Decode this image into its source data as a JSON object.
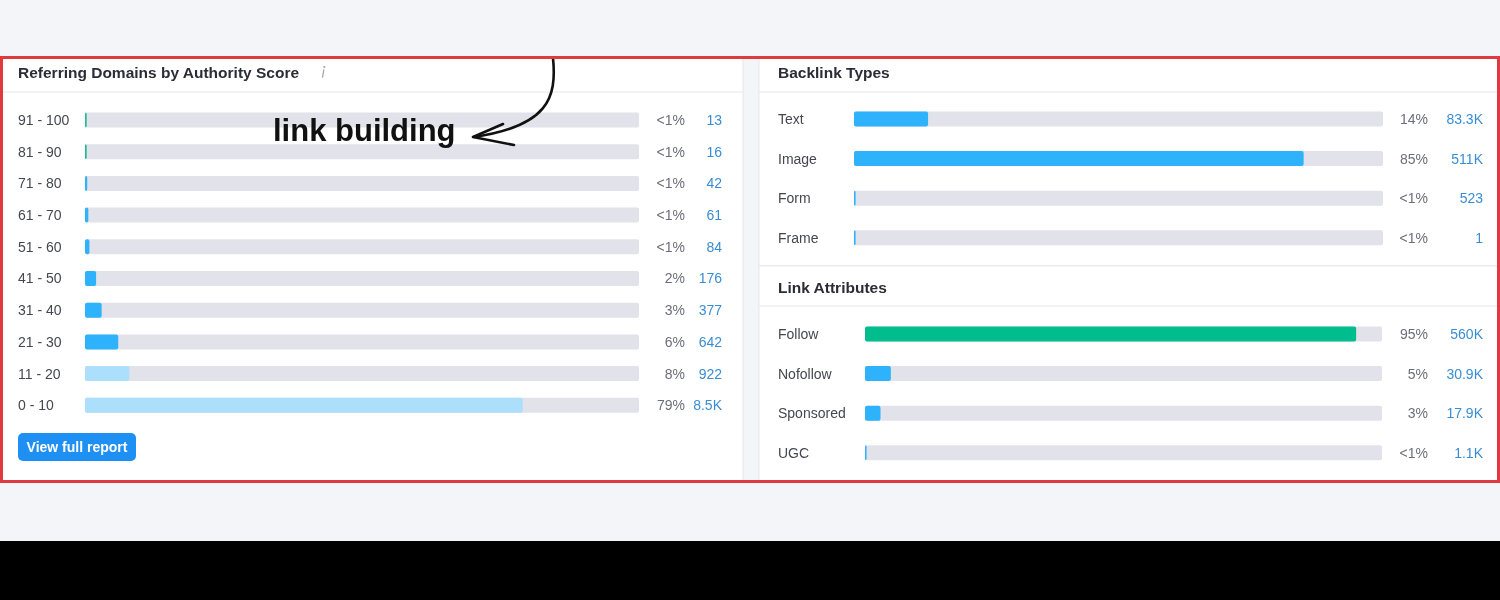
{
  "chart_data": [
    {
      "type": "bar",
      "orientation": "horizontal",
      "title": "Referring Domains by Authority Score",
      "categories": [
        "91 - 100",
        "81 - 90",
        "71 - 80",
        "61 - 70",
        "51 - 60",
        "41 - 50",
        "31 - 40",
        "21 - 30",
        "11 - 20",
        "0 - 10"
      ],
      "values": [
        0.3,
        0.3,
        0.4,
        0.6,
        0.8,
        2,
        3,
        6,
        8,
        79
      ],
      "colors": [
        "#1fb996",
        "#1fb996",
        "#2eb2fb",
        "#2eb2fb",
        "#2eb2fb",
        "#2eb2fb",
        "#2eb2fb",
        "#2eb2fb",
        "#abdffc",
        "#abdffc"
      ],
      "xlim": [
        0,
        100
      ],
      "tick_labels": "y",
      "value_labels": [
        "<1%",
        "<1%",
        "<1%",
        "<1%",
        "<1%",
        "2%",
        "3%",
        "6%",
        "8%",
        "79%"
      ],
      "annotations": [
        "13",
        "16",
        "42",
        "61",
        "84",
        "176",
        "377",
        "642",
        "922",
        "8.5K",
        "link building",
        "View full report"
      ]
    },
    {
      "type": "bar",
      "orientation": "horizontal",
      "title": "Backlink Types",
      "categories": [
        "Text",
        "Image",
        "Form",
        "Frame"
      ],
      "values": [
        14,
        85,
        0.3,
        0.3
      ],
      "colors": [
        "#2eb2fb",
        "#2eb2fb",
        "#2eb2fb",
        "#2eb2fb"
      ],
      "xlim": [
        0,
        100
      ],
      "tick_labels": "y",
      "value_labels": [
        "14%",
        "85%",
        "<1%",
        "<1%"
      ],
      "annotations": [
        "83.3K",
        "511K",
        "523",
        "1"
      ]
    },
    {
      "type": "bar",
      "orientation": "horizontal",
      "title": "Link Attributes",
      "categories": [
        "Follow",
        "Nofollow",
        "Sponsored",
        "UGC"
      ],
      "values": [
        95,
        5,
        3,
        0.3
      ],
      "colors": [
        "#00bd8d",
        "#2eb2fb",
        "#2eb2fb",
        "#2eb2fb"
      ],
      "xlim": [
        0,
        100
      ],
      "tick_labels": "y",
      "value_labels": [
        "95%",
        "5%",
        "3%",
        "<1%"
      ],
      "annotations": [
        "560K",
        "30.9K",
        "17.9K",
        "1.1K"
      ]
    }
  ]
}
